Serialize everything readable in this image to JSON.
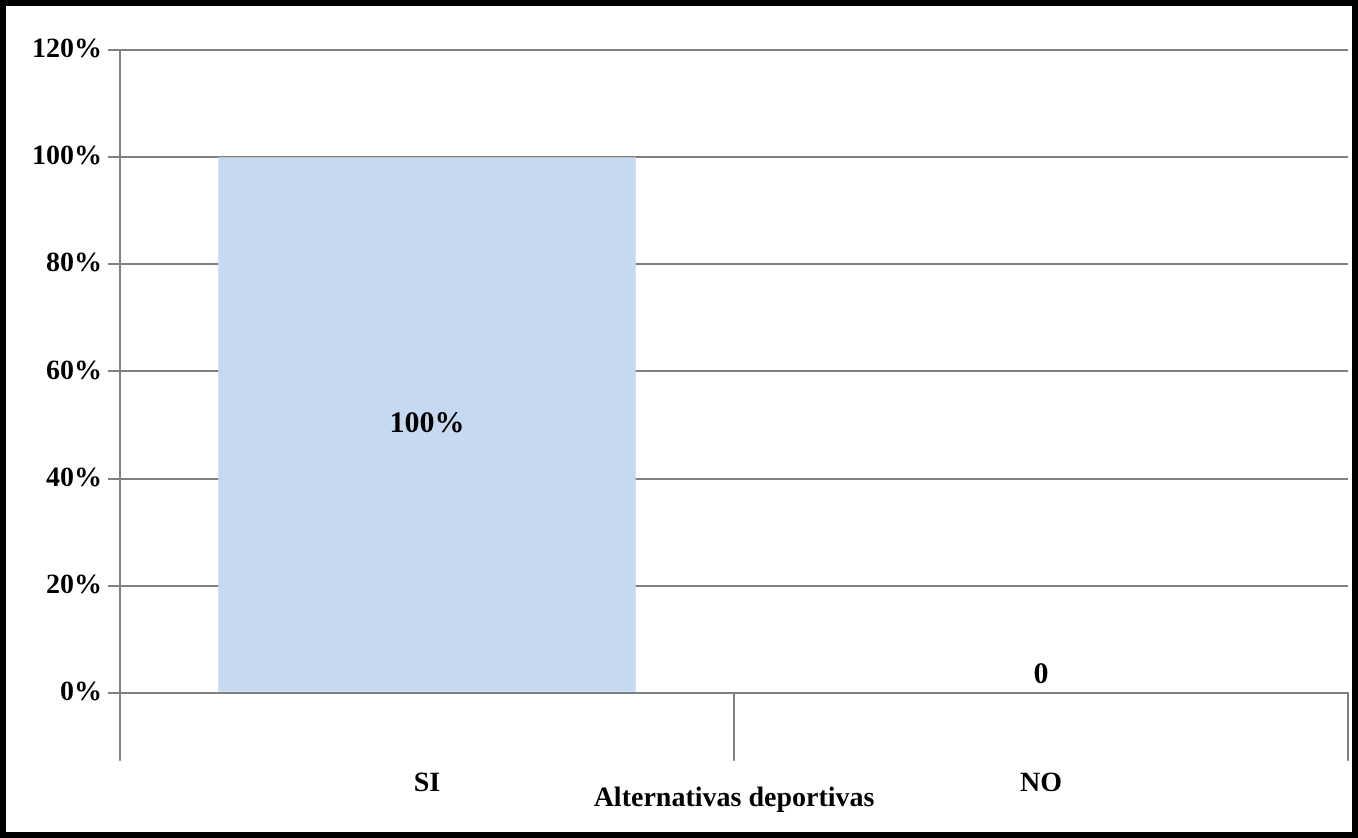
{
  "chart_data": {
    "type": "bar",
    "xlabel": "Alternativas deportivas",
    "categories": [
      "SI",
      "NO"
    ],
    "values": [
      100,
      0
    ],
    "value_labels": [
      "100%",
      "0"
    ],
    "color": "#c6d9f1",
    "ylim": [
      0,
      120
    ],
    "yticks": [
      {
        "value": 0,
        "label": "0%"
      },
      {
        "value": 20,
        "label": "20%"
      },
      {
        "value": 40,
        "label": "40%"
      },
      {
        "value": 60,
        "label": "60%"
      },
      {
        "value": 80,
        "label": "80%"
      },
      {
        "value": 100,
        "label": "100%"
      },
      {
        "value": 120,
        "label": "120%"
      }
    ],
    "grid": "y",
    "legend": false
  }
}
